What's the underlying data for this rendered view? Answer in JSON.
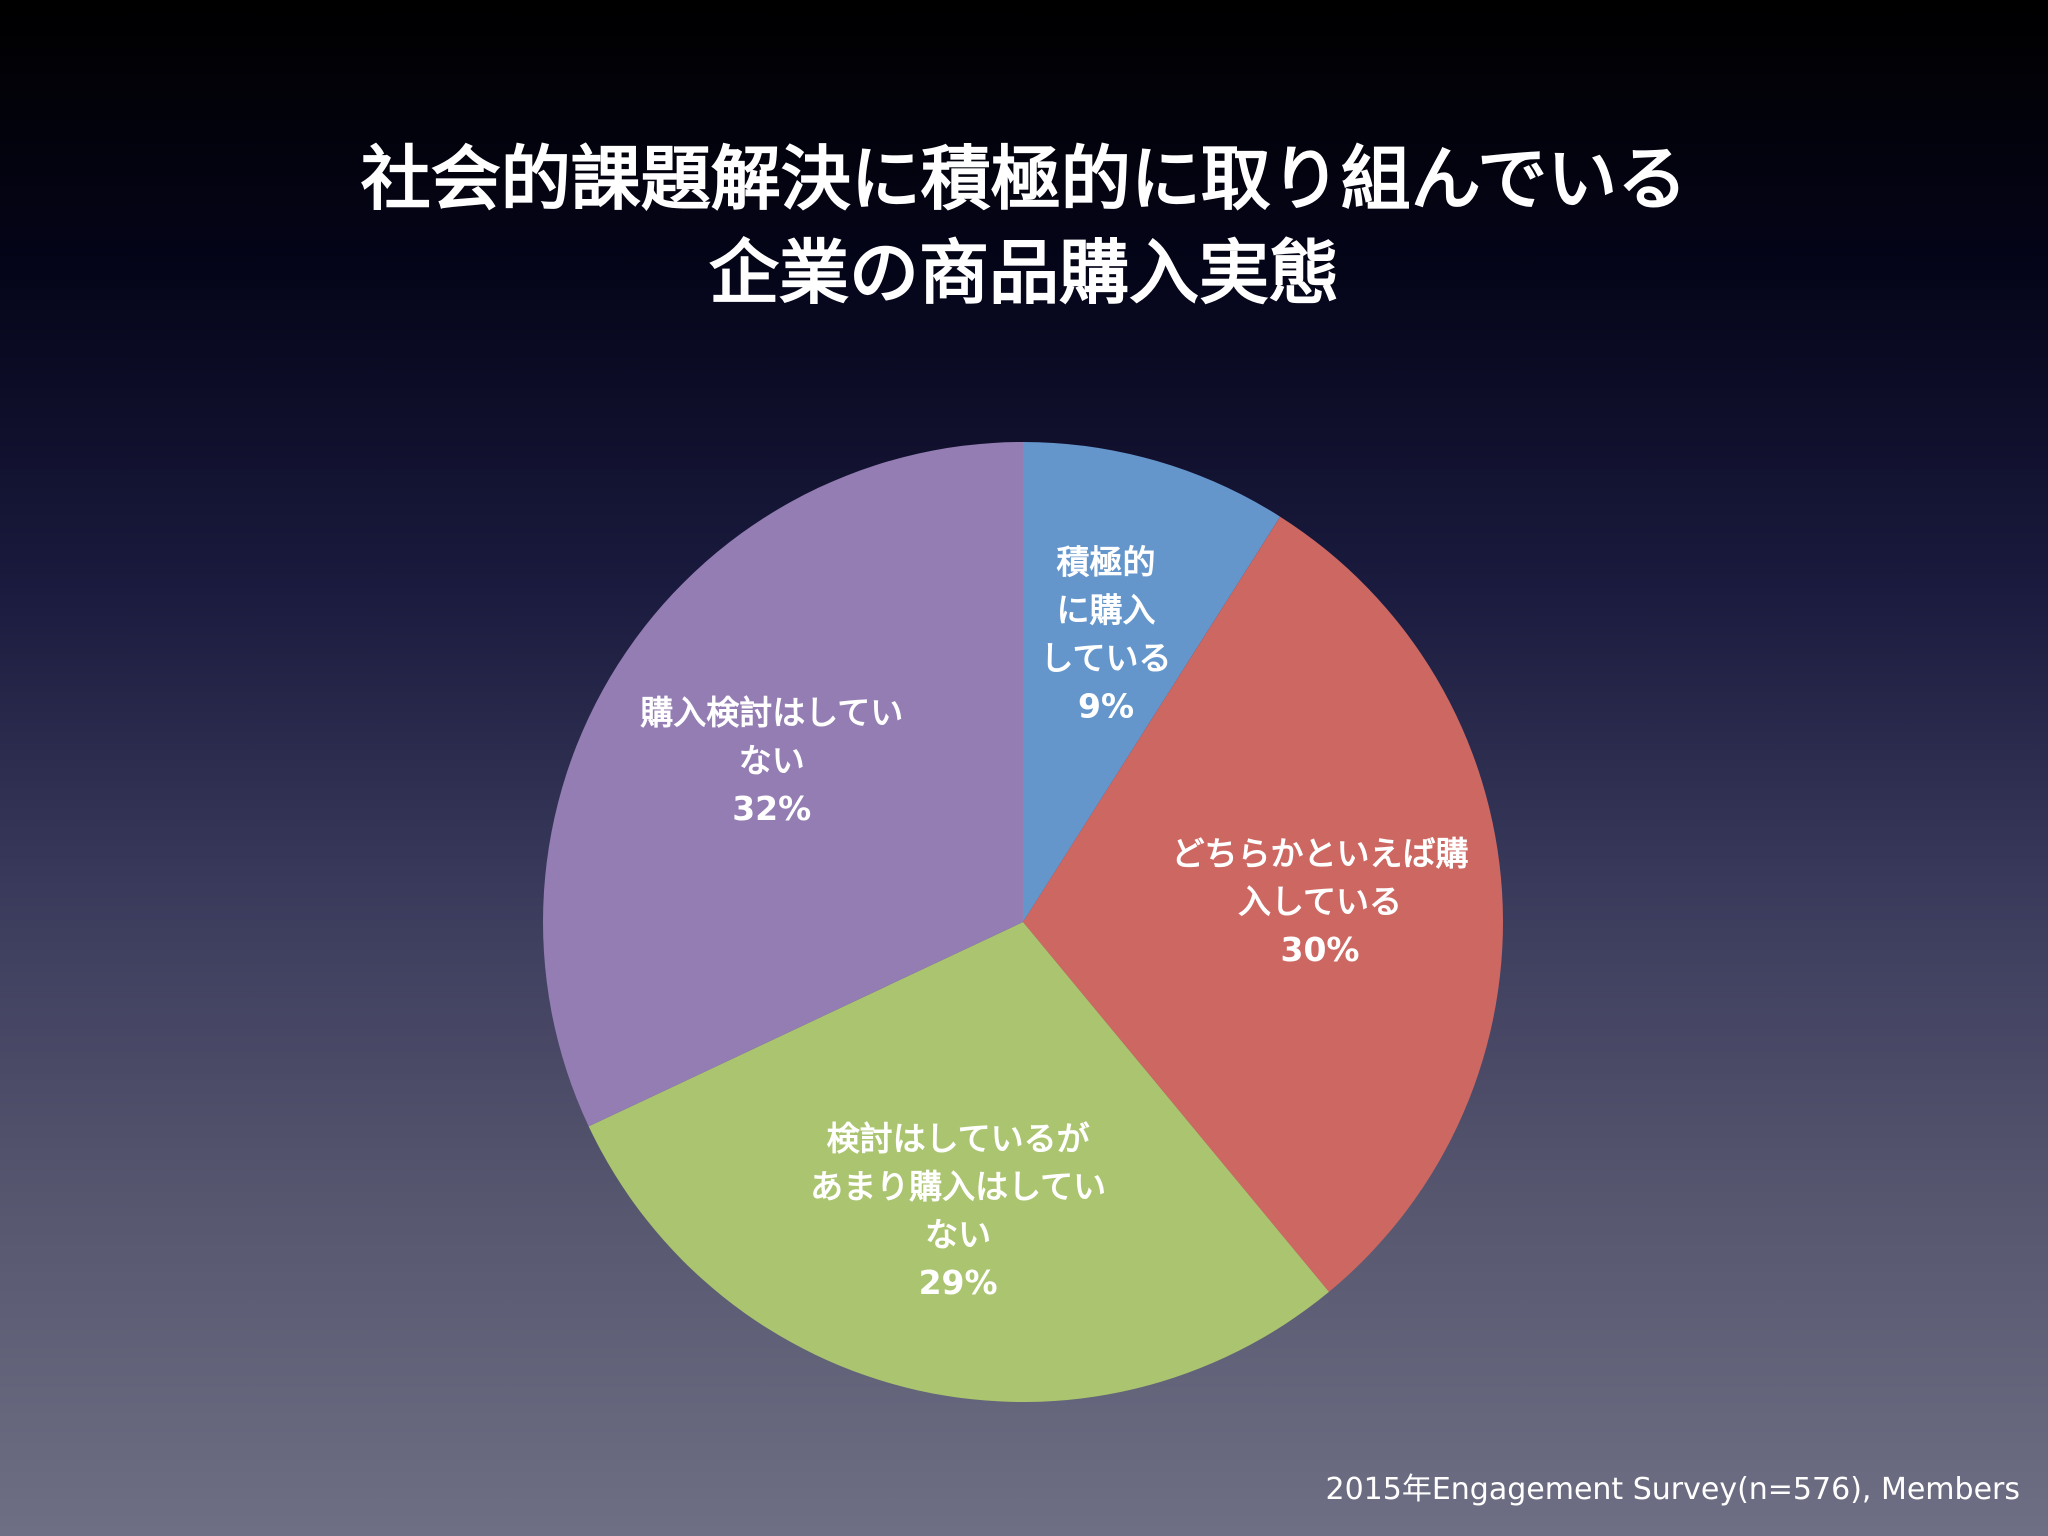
{
  "title": {
    "line1": "社会的課題解決に積極的に取り組んでいる",
    "line2": "企業の商品購入実態"
  },
  "footer": {
    "source": "2015年Engagement Survey(n=576), Members"
  },
  "chart_data": {
    "type": "pie",
    "title": "社会的課題解決に積極的に取り組んでいる企業の商品購入実態",
    "slices": [
      {
        "label_lines": [
          "積極的",
          "に購入",
          "している"
        ],
        "value": 9,
        "value_label": "9%",
        "color": "#6496cc"
      },
      {
        "label_lines": [
          "どちらかといえば購",
          "入している"
        ],
        "value": 30,
        "value_label": "30%",
        "color": "#cd6762"
      },
      {
        "label_lines": [
          "検討はしているが",
          "あまり購入はしてい",
          "ない"
        ],
        "value": 29,
        "value_label": "29%",
        "color": "#abc46f"
      },
      {
        "label_lines": [
          "購入検討はしてい",
          "ない"
        ],
        "value": 32,
        "value_label": "32%",
        "color": "#937db3"
      }
    ]
  }
}
